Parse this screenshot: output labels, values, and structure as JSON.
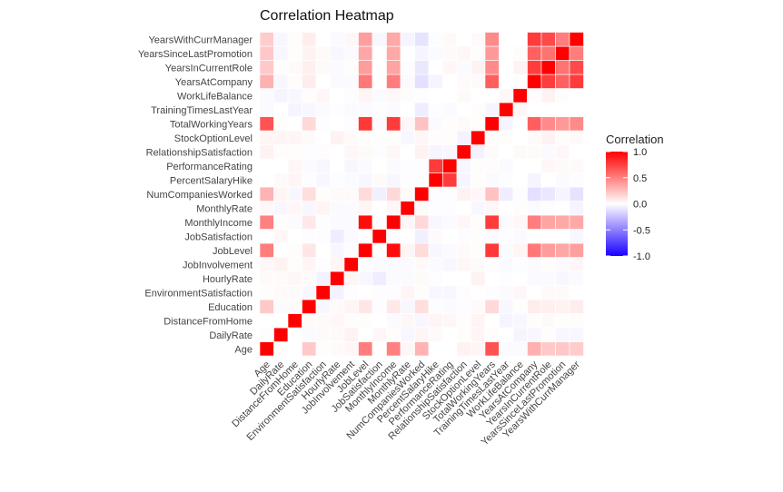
{
  "chart_data": {
    "type": "heatmap",
    "title": "Correlation Heatmap",
    "legend": {
      "title": "Correlation",
      "ticks": [
        "1.0",
        "0.5",
        "0.0",
        "-0.5",
        "-1.0"
      ],
      "tick_values": [
        1.0,
        0.5,
        0.0,
        -0.5,
        -1.0
      ],
      "placement": "right"
    },
    "colors": {
      "low": "#1b00ff",
      "mid": "#ffffff",
      "high": "#ff0000"
    },
    "limits": [
      -1,
      1
    ],
    "variables": [
      "Age",
      "DailyRate",
      "DistanceFromHome",
      "Education",
      "EnvironmentSatisfaction",
      "HourlyRate",
      "JobInvolvement",
      "JobLevel",
      "JobSatisfaction",
      "MonthlyIncome",
      "MonthlyRate",
      "NumCompaniesWorked",
      "PercentSalaryHike",
      "PerformanceRating",
      "RelationshipSatisfaction",
      "StockOptionLevel",
      "TotalWorkingYears",
      "TrainingTimesLastYear",
      "WorkLifeBalance",
      "YearsAtCompany",
      "YearsInCurrentRole",
      "YearsSinceLastPromotion",
      "YearsWithCurrManager"
    ],
    "matrix": [
      [
        1.0,
        0.01,
        0.0,
        0.21,
        0.01,
        0.02,
        0.03,
        0.51,
        0.0,
        0.5,
        0.03,
        0.3,
        0.0,
        0.0,
        0.05,
        0.04,
        0.68,
        -0.02,
        -0.02,
        0.31,
        0.21,
        0.22,
        0.2
      ],
      [
        0.01,
        1.0,
        0.0,
        -0.02,
        0.02,
        0.02,
        0.05,
        0.0,
        0.03,
        0.01,
        -0.03,
        0.04,
        0.02,
        0.0,
        0.01,
        0.04,
        0.01,
        0.0,
        -0.04,
        -0.03,
        0.01,
        -0.03,
        -0.03
      ],
      [
        0.0,
        0.0,
        1.0,
        0.02,
        0.02,
        0.03,
        0.01,
        0.01,
        0.0,
        -0.02,
        0.03,
        -0.03,
        0.04,
        0.03,
        0.01,
        0.04,
        0.0,
        -0.04,
        -0.03,
        0.01,
        0.02,
        0.01,
        0.01
      ],
      [
        0.21,
        -0.02,
        0.02,
        1.0,
        -0.03,
        0.02,
        0.04,
        0.1,
        -0.01,
        0.09,
        -0.03,
        0.13,
        -0.01,
        -0.02,
        -0.01,
        0.02,
        0.15,
        -0.03,
        0.01,
        0.07,
        0.06,
        0.05,
        0.07
      ],
      [
        0.01,
        0.02,
        0.02,
        -0.03,
        1.0,
        -0.05,
        -0.01,
        0.0,
        -0.01,
        -0.01,
        0.04,
        0.01,
        -0.03,
        -0.03,
        0.01,
        0.0,
        -0.01,
        -0.02,
        0.03,
        0.0,
        0.02,
        0.02,
        0.0
      ],
      [
        0.02,
        0.02,
        0.03,
        0.02,
        -0.05,
        1.0,
        0.04,
        -0.03,
        -0.07,
        -0.02,
        -0.02,
        0.02,
        -0.01,
        0.0,
        0.0,
        0.05,
        0.0,
        -0.01,
        -0.0,
        -0.02,
        -0.02,
        -0.03,
        -0.02
      ],
      [
        0.03,
        0.05,
        0.01,
        0.04,
        -0.01,
        0.04,
        1.0,
        -0.01,
        -0.02,
        -0.02,
        -0.02,
        0.02,
        -0.02,
        -0.03,
        0.03,
        0.02,
        -0.01,
        -0.02,
        -0.01,
        -0.02,
        0.01,
        -0.02,
        0.03
      ],
      [
        0.51,
        0.0,
        0.01,
        0.1,
        0.0,
        -0.03,
        -0.01,
        1.0,
        0.0,
        0.95,
        0.04,
        0.14,
        -0.03,
        -0.02,
        0.02,
        0.01,
        0.78,
        -0.02,
        0.04,
        0.53,
        0.39,
        0.35,
        0.38
      ],
      [
        0.0,
        0.03,
        0.0,
        -0.01,
        -0.01,
        -0.07,
        -0.02,
        0.0,
        1.0,
        -0.01,
        0.0,
        -0.06,
        0.02,
        0.0,
        -0.01,
        0.01,
        -0.02,
        -0.01,
        -0.02,
        0.0,
        0.0,
        0.0,
        -0.03
      ],
      [
        0.5,
        0.01,
        -0.02,
        0.09,
        -0.01,
        -0.02,
        -0.02,
        0.95,
        -0.01,
        1.0,
        0.03,
        0.15,
        -0.03,
        -0.02,
        0.03,
        0.01,
        0.77,
        -0.02,
        0.03,
        0.51,
        0.36,
        0.34,
        0.34
      ],
      [
        0.03,
        -0.03,
        0.03,
        -0.03,
        0.04,
        -0.02,
        -0.02,
        0.04,
        0.0,
        0.03,
        1.0,
        0.02,
        -0.01,
        -0.01,
        -0.0,
        -0.03,
        0.03,
        0.0,
        0.01,
        -0.02,
        -0.01,
        0.0,
        -0.04
      ],
      [
        0.3,
        0.04,
        -0.03,
        0.13,
        0.01,
        0.02,
        0.02,
        0.14,
        -0.06,
        0.15,
        0.02,
        1.0,
        -0.01,
        -0.01,
        0.05,
        0.03,
        0.24,
        -0.07,
        -0.01,
        -0.12,
        -0.09,
        -0.04,
        -0.11
      ],
      [
        0.0,
        0.02,
        0.04,
        -0.01,
        -0.03,
        -0.01,
        -0.02,
        -0.03,
        0.02,
        -0.03,
        -0.01,
        -0.01,
        1.0,
        0.77,
        -0.04,
        0.01,
        -0.02,
        -0.01,
        -0.0,
        -0.04,
        -0.0,
        -0.02,
        -0.01
      ],
      [
        0.0,
        0.0,
        0.03,
        -0.02,
        -0.03,
        0.0,
        -0.03,
        -0.02,
        0.0,
        -0.02,
        -0.01,
        -0.01,
        0.77,
        1.0,
        -0.03,
        0.01,
        0.01,
        -0.02,
        0.0,
        0.0,
        0.03,
        0.02,
        0.02
      ],
      [
        0.05,
        0.01,
        0.01,
        -0.01,
        0.01,
        0.0,
        0.03,
        0.02,
        -0.01,
        0.03,
        -0.0,
        0.05,
        -0.04,
        -0.03,
        1.0,
        -0.05,
        0.02,
        0.0,
        0.02,
        0.02,
        -0.02,
        0.03,
        -0.0
      ],
      [
        0.04,
        0.04,
        0.04,
        0.02,
        0.0,
        0.05,
        0.02,
        0.01,
        0.01,
        0.01,
        -0.03,
        0.03,
        0.01,
        0.01,
        -0.05,
        1.0,
        0.01,
        0.01,
        0.0,
        0.02,
        0.05,
        0.01,
        0.02
      ],
      [
        0.68,
        0.01,
        0.0,
        0.15,
        -0.01,
        0.0,
        -0.01,
        0.78,
        -0.02,
        0.77,
        0.03,
        0.24,
        -0.02,
        0.01,
        0.02,
        0.01,
        1.0,
        -0.04,
        0.0,
        0.63,
        0.46,
        0.4,
        0.46
      ],
      [
        -0.02,
        0.0,
        -0.04,
        -0.03,
        -0.02,
        -0.01,
        -0.02,
        -0.02,
        -0.01,
        -0.02,
        0.0,
        -0.07,
        -0.01,
        -0.02,
        0.0,
        0.01,
        -0.04,
        1.0,
        0.03,
        0.0,
        0.0,
        0.0,
        0.0
      ],
      [
        -0.02,
        -0.04,
        -0.03,
        0.01,
        0.03,
        -0.0,
        -0.01,
        0.04,
        -0.02,
        0.03,
        0.01,
        -0.01,
        -0.0,
        0.0,
        0.02,
        0.0,
        0.0,
        0.03,
        1.0,
        0.01,
        0.05,
        0.01,
        0.0
      ],
      [
        0.31,
        -0.03,
        0.01,
        0.07,
        0.0,
        -0.02,
        -0.02,
        0.53,
        0.0,
        0.51,
        -0.02,
        -0.12,
        -0.04,
        0.0,
        0.02,
        0.02,
        0.63,
        0.0,
        0.01,
        1.0,
        0.76,
        0.62,
        0.77
      ],
      [
        0.21,
        0.01,
        0.02,
        0.06,
        0.02,
        -0.02,
        0.01,
        0.39,
        0.0,
        0.36,
        -0.01,
        -0.09,
        -0.0,
        0.03,
        -0.02,
        0.05,
        0.46,
        0.0,
        0.05,
        0.76,
        1.0,
        0.55,
        0.71
      ],
      [
        0.22,
        -0.03,
        0.01,
        0.05,
        0.02,
        -0.03,
        -0.02,
        0.35,
        0.0,
        0.34,
        0.0,
        -0.04,
        -0.02,
        0.02,
        0.03,
        0.01,
        0.4,
        0.0,
        0.01,
        0.62,
        0.55,
        1.0,
        0.51
      ],
      [
        0.2,
        -0.03,
        0.01,
        0.07,
        0.0,
        -0.02,
        0.03,
        0.38,
        -0.03,
        0.34,
        -0.04,
        -0.11,
        -0.01,
        0.02,
        -0.0,
        0.02,
        0.46,
        0.0,
        0.0,
        0.77,
        0.71,
        0.51,
        1.0
      ]
    ]
  }
}
